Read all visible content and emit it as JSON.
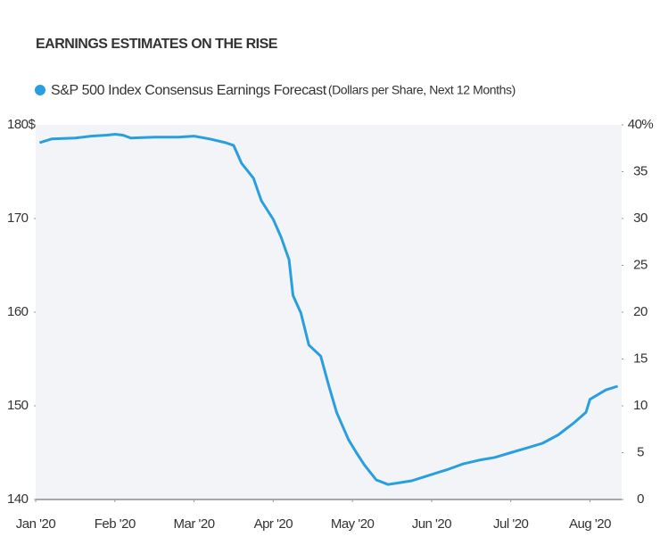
{
  "chart_data": {
    "type": "line",
    "title": "EARNINGS ESTIMATES ON THE RISE",
    "legend_note": "(Dollars per Share, Next 12 Months)",
    "x": [
      0.05,
      0.2,
      0.5,
      0.7,
      0.9,
      1.0,
      1.1,
      1.2,
      1.5,
      1.8,
      2.0,
      2.2,
      2.4,
      2.5,
      2.6,
      2.75,
      2.85,
      3.0,
      3.1,
      3.2,
      3.25,
      3.35,
      3.45,
      3.6,
      3.7,
      3.8,
      3.95,
      4.05,
      4.15,
      4.3,
      4.45,
      4.6,
      4.75,
      4.9,
      5.05,
      5.2,
      5.4,
      5.6,
      5.8,
      6.0,
      6.2,
      6.4,
      6.6,
      6.8,
      6.95,
      7.0,
      7.1,
      7.2,
      7.35
    ],
    "series": [
      {
        "name": "S&P 500 Index Consensus Earnings Forecast",
        "color": "#2a9fe0",
        "values": [
          178.1,
          178.5,
          178.6,
          178.8,
          178.9,
          179.0,
          178.9,
          178.6,
          178.7,
          178.7,
          178.8,
          178.5,
          178.1,
          177.8,
          175.9,
          174.3,
          171.9,
          169.9,
          168.0,
          165.6,
          161.8,
          159.9,
          156.5,
          155.3,
          152.2,
          149.3,
          146.4,
          145.0,
          143.7,
          142.1,
          141.6,
          141.8,
          142.0,
          142.4,
          142.8,
          143.2,
          143.8,
          144.2,
          144.5,
          145.0,
          145.5,
          146.0,
          146.9,
          148.2,
          149.3,
          150.7,
          151.2,
          151.7,
          152.1
        ]
      }
    ],
    "xlim": [
      0,
      7.4
    ],
    "xticks": [
      {
        "value": 0,
        "label": "Jan '20"
      },
      {
        "value": 1,
        "label": "Feb '20"
      },
      {
        "value": 2,
        "label": "Mar '20"
      },
      {
        "value": 3,
        "label": "Apr '20"
      },
      {
        "value": 4,
        "label": "May '20"
      },
      {
        "value": 5,
        "label": "Jun '20"
      },
      {
        "value": 6,
        "label": "Jul '20"
      },
      {
        "value": 7,
        "label": "Aug '20"
      }
    ],
    "ylim": [
      140,
      180
    ],
    "yticks": [
      140,
      150,
      160,
      170,
      {
        "value": 180,
        "label": "180$"
      }
    ],
    "y2lim": [
      0,
      40
    ],
    "y2ticks": [
      0,
      5,
      10,
      15,
      20,
      25,
      30,
      35,
      {
        "value": 40,
        "label": "40%"
      }
    ],
    "grid": false
  }
}
